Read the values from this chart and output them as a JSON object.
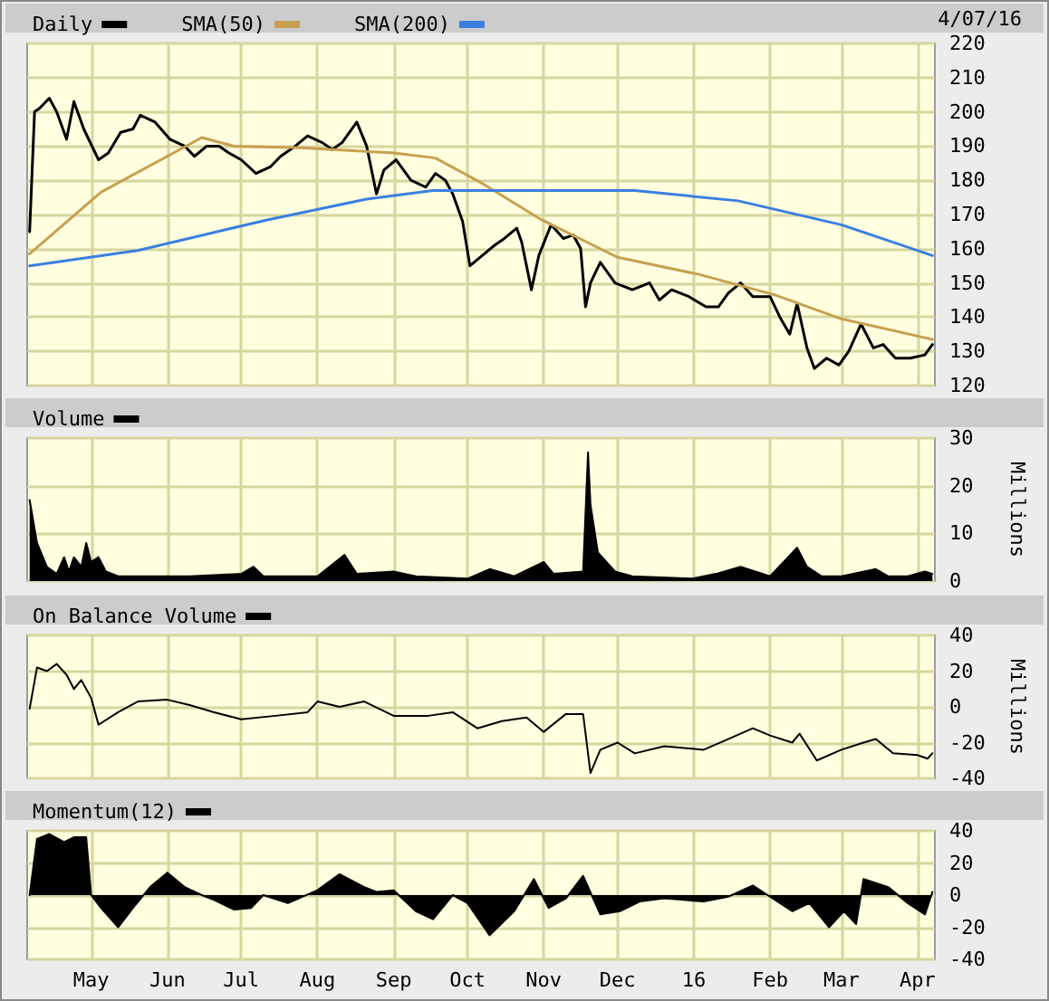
{
  "chart_data": [
    {
      "type": "line",
      "annotations": [
        "4/07/16"
      ],
      "legend": "top left",
      "grid": true,
      "tick_labels": "y",
      "xlim": [
        "2015-04-05",
        "2016-04-08"
      ],
      "xticks": [
        {
          "value": "2015-05-01",
          "label": null
        },
        {
          "value": "2015-06-01",
          "label": null
        },
        {
          "value": "2015-07-01",
          "label": null
        },
        {
          "value": "2015-08-01",
          "label": null
        },
        {
          "value": "2015-09-01",
          "label": null
        },
        {
          "value": "2015-10-01",
          "label": null
        },
        {
          "value": "2015-11-01",
          "label": null
        },
        {
          "value": "2015-12-01",
          "label": null
        },
        {
          "value": "2016-01-01",
          "label": null
        },
        {
          "value": "2016-02-01",
          "label": null
        },
        {
          "value": "2016-03-01",
          "label": null
        },
        {
          "value": "2016-04-01",
          "label": null
        }
      ],
      "ylim": [
        120,
        220
      ],
      "yticks": [
        120,
        130,
        140,
        150,
        160,
        170,
        180,
        190,
        200,
        210,
        220
      ],
      "series": [
        {
          "name": "Daily",
          "color": "#000000",
          "x": [
            "2015-04-06",
            "2015-04-08",
            "2015-04-10",
            "2015-04-14",
            "2015-04-17",
            "2015-04-21",
            "2015-04-24",
            "2015-04-28",
            "2015-05-04",
            "2015-05-08",
            "2015-05-13",
            "2015-05-18",
            "2015-05-21",
            "2015-05-27",
            "2015-06-02",
            "2015-06-08",
            "2015-06-12",
            "2015-06-17",
            "2015-06-22",
            "2015-06-26",
            "2015-07-01",
            "2015-07-07",
            "2015-07-13",
            "2015-07-17",
            "2015-07-23",
            "2015-07-28",
            "2015-08-03",
            "2015-08-07",
            "2015-08-11",
            "2015-08-17",
            "2015-08-21",
            "2015-08-25",
            "2015-08-28",
            "2015-09-02",
            "2015-09-08",
            "2015-09-14",
            "2015-09-18",
            "2015-09-22",
            "2015-09-25",
            "2015-09-29",
            "2015-10-02",
            "2015-10-07",
            "2015-10-12",
            "2015-10-16",
            "2015-10-21",
            "2015-10-23",
            "2015-10-27",
            "2015-10-30",
            "2015-11-04",
            "2015-11-09",
            "2015-11-13",
            "2015-11-16",
            "2015-11-18",
            "2015-11-20",
            "2015-11-24",
            "2015-11-30",
            "2015-12-07",
            "2015-12-14",
            "2015-12-18",
            "2015-12-23",
            "2015-12-30",
            "2016-01-06",
            "2016-01-11",
            "2016-01-15",
            "2016-01-20",
            "2016-01-25",
            "2016-02-01",
            "2016-02-05",
            "2016-02-09",
            "2016-02-12",
            "2016-02-16",
            "2016-02-19",
            "2016-02-24",
            "2016-02-29",
            "2016-03-04",
            "2016-03-09",
            "2016-03-14",
            "2016-03-18",
            "2016-03-23",
            "2016-03-29",
            "2016-04-04",
            "2016-04-07"
          ],
          "values": [
            165,
            200,
            201,
            204,
            200,
            192,
            203,
            195,
            186,
            188,
            194,
            195,
            199,
            197,
            192,
            190,
            187,
            190,
            190,
            188,
            186,
            182,
            184,
            187,
            190,
            193,
            191,
            189,
            191,
            197,
            190,
            176,
            183,
            186,
            180,
            178,
            182,
            180,
            176,
            168,
            155,
            158,
            161,
            163,
            166,
            162,
            148,
            158,
            167,
            163,
            164,
            160,
            143,
            150,
            156,
            150,
            148,
            150,
            145,
            148,
            146,
            143,
            143,
            147,
            150,
            146,
            146,
            140,
            135,
            144,
            131,
            125,
            128,
            126,
            130,
            138,
            131,
            132,
            128,
            128,
            129,
            132
          ]
        },
        {
          "name": "SMA(50)",
          "color": "#c8a050",
          "x": [
            "2015-04-06",
            "2015-05-05",
            "2015-06-15",
            "2015-06-28",
            "2015-07-25",
            "2015-09-01",
            "2015-09-18",
            "2015-10-06",
            "2015-10-31",
            "2015-12-01",
            "2016-01-03",
            "2016-02-03",
            "2016-03-01",
            "2016-04-07"
          ],
          "values": [
            158.5,
            176.5,
            192.5,
            190,
            189.5,
            188,
            186.5,
            179.5,
            168.5,
            157.5,
            152.5,
            146.5,
            139.5,
            133.5
          ]
        },
        {
          "name": "SMA(200)",
          "color": "#3a7fe0",
          "x": [
            "2015-04-06",
            "2015-05-20",
            "2015-07-12",
            "2015-08-21",
            "2015-09-17",
            "2015-12-08",
            "2016-01-19",
            "2016-03-01",
            "2016-04-07"
          ],
          "values": [
            155,
            159.5,
            168.5,
            174.5,
            177,
            177,
            174,
            167,
            158
          ]
        }
      ]
    },
    {
      "type": "area",
      "legend": "top left",
      "grid": true,
      "tick_labels": "y",
      "ylabel": "Millions",
      "xlim": [
        "2015-04-05",
        "2016-04-08"
      ],
      "xticks": [
        {
          "value": "2015-05-01",
          "label": null
        },
        {
          "value": "2015-06-01",
          "label": null
        },
        {
          "value": "2015-07-01",
          "label": null
        },
        {
          "value": "2015-08-01",
          "label": null
        },
        {
          "value": "2015-09-01",
          "label": null
        },
        {
          "value": "2015-10-01",
          "label": null
        },
        {
          "value": "2015-11-01",
          "label": null
        },
        {
          "value": "2015-12-01",
          "label": null
        },
        {
          "value": "2016-01-01",
          "label": null
        },
        {
          "value": "2016-02-01",
          "label": null
        },
        {
          "value": "2016-03-01",
          "label": null
        },
        {
          "value": "2016-04-01",
          "label": null
        }
      ],
      "ylim": [
        0,
        30
      ],
      "yticks": [
        0,
        10,
        20,
        30
      ],
      "series": [
        {
          "name": "Volume",
          "color": "#000000",
          "x": [
            "2015-04-06",
            "2015-04-09",
            "2015-04-13",
            "2015-04-17",
            "2015-04-20",
            "2015-04-22",
            "2015-04-24",
            "2015-04-27",
            "2015-04-29",
            "2015-05-01",
            "2015-05-04",
            "2015-05-07",
            "2015-05-12",
            "2015-06-01",
            "2015-06-10",
            "2015-07-01",
            "2015-07-06",
            "2015-07-10",
            "2015-08-01",
            "2015-08-12",
            "2015-08-17",
            "2015-09-01",
            "2015-09-10",
            "2015-10-01",
            "2015-10-10",
            "2015-10-20",
            "2015-11-01",
            "2015-11-05",
            "2015-11-17",
            "2015-11-19",
            "2015-11-20",
            "2015-11-23",
            "2015-11-30",
            "2015-12-07",
            "2015-12-31",
            "2016-01-10",
            "2016-01-20",
            "2016-02-01",
            "2016-02-12",
            "2016-02-16",
            "2016-02-22",
            "2016-03-01",
            "2016-03-15",
            "2016-03-20",
            "2016-03-28",
            "2016-04-04",
            "2016-04-07"
          ],
          "values": [
            17,
            8,
            3,
            1.5,
            5,
            2,
            5,
            3,
            8,
            4,
            5,
            2,
            1,
            1,
            1,
            1.5,
            3,
            1,
            1,
            5.5,
            1.5,
            2,
            1,
            0.5,
            2.5,
            1,
            4,
            1.5,
            2,
            27,
            16,
            6,
            2,
            1,
            0.5,
            1.5,
            3,
            1,
            7,
            3,
            1,
            1,
            2.5,
            1,
            1,
            2,
            1.5
          ]
        }
      ]
    },
    {
      "type": "line",
      "legend": "top left",
      "grid": true,
      "tick_labels": "y",
      "ylabel": "Millions",
      "xlim": [
        "2015-04-05",
        "2016-04-08"
      ],
      "xticks": [
        {
          "value": "2015-05-01",
          "label": null
        },
        {
          "value": "2015-06-01",
          "label": null
        },
        {
          "value": "2015-07-01",
          "label": null
        },
        {
          "value": "2015-08-01",
          "label": null
        },
        {
          "value": "2015-09-01",
          "label": null
        },
        {
          "value": "2015-10-01",
          "label": null
        },
        {
          "value": "2015-11-01",
          "label": null
        },
        {
          "value": "2015-12-01",
          "label": null
        },
        {
          "value": "2016-01-01",
          "label": null
        },
        {
          "value": "2016-02-01",
          "label": null
        },
        {
          "value": "2016-03-01",
          "label": null
        },
        {
          "value": "2016-04-01",
          "label": null
        }
      ],
      "ylim": [
        -40,
        40
      ],
      "yticks": [
        -40,
        -20,
        0,
        20,
        40
      ],
      "series": [
        {
          "name": "On Balance Volume",
          "color": "#000000",
          "x": [
            "2015-04-06",
            "2015-04-09",
            "2015-04-13",
            "2015-04-17",
            "2015-04-21",
            "2015-04-24",
            "2015-04-27",
            "2015-05-01",
            "2015-05-04",
            "2015-05-12",
            "2015-05-20",
            "2015-06-01",
            "2015-06-10",
            "2015-06-20",
            "2015-07-01",
            "2015-07-15",
            "2015-07-28",
            "2015-08-01",
            "2015-08-10",
            "2015-08-20",
            "2015-09-01",
            "2015-09-15",
            "2015-09-25",
            "2015-10-05",
            "2015-10-15",
            "2015-10-25",
            "2015-11-01",
            "2015-11-10",
            "2015-11-17",
            "2015-11-20",
            "2015-11-24",
            "2015-12-01",
            "2015-12-08",
            "2015-12-20",
            "2016-01-05",
            "2016-01-15",
            "2016-01-25",
            "2016-02-01",
            "2016-02-10",
            "2016-02-13",
            "2016-02-20",
            "2016-03-01",
            "2016-03-10",
            "2016-03-15",
            "2016-03-22",
            "2016-04-01",
            "2016-04-05",
            "2016-04-07"
          ],
          "values": [
            -1,
            22,
            20,
            24,
            18,
            10,
            15,
            5,
            -10,
            -3,
            3,
            4,
            1,
            -3,
            -7,
            -5,
            -3,
            3,
            0,
            3,
            -5,
            -5,
            -3,
            -12,
            -8,
            -6,
            -14,
            -4,
            -4,
            -37,
            -24,
            -20,
            -26,
            -22,
            -24,
            -18,
            -12,
            -16,
            -20,
            -15,
            -30,
            -24,
            -20,
            -18,
            -26,
            -27,
            -29,
            -26
          ]
        }
      ]
    },
    {
      "type": "area",
      "legend": "top left",
      "grid": true,
      "xlim": [
        "2015-04-05",
        "2016-04-08"
      ],
      "xticks": [
        {
          "value": "2015-05-01",
          "label": "May"
        },
        {
          "value": "2015-06-01",
          "label": "Jun"
        },
        {
          "value": "2015-07-01",
          "label": "Jul"
        },
        {
          "value": "2015-08-01",
          "label": "Aug"
        },
        {
          "value": "2015-09-01",
          "label": "Sep"
        },
        {
          "value": "2015-10-01",
          "label": "Oct"
        },
        {
          "value": "2015-11-01",
          "label": "Nov"
        },
        {
          "value": "2015-12-01",
          "label": "Dec"
        },
        {
          "value": "2016-01-01",
          "label": "16"
        },
        {
          "value": "2016-02-01",
          "label": "Feb"
        },
        {
          "value": "2016-03-01",
          "label": "Mar"
        },
        {
          "value": "2016-04-01",
          "label": "Apr"
        }
      ],
      "ylim": [
        -40,
        40
      ],
      "yticks": [
        -40,
        -20,
        0,
        20,
        40
      ],
      "series": [
        {
          "name": "Momentum(12)",
          "color": "#000000",
          "x": [
            "2015-04-06",
            "2015-04-09",
            "2015-04-14",
            "2015-04-20",
            "2015-04-24",
            "2015-04-29",
            "2015-05-01",
            "2015-05-05",
            "2015-05-12",
            "2015-05-18",
            "2015-05-25",
            "2015-06-01",
            "2015-06-08",
            "2015-06-15",
            "2015-06-20",
            "2015-06-28",
            "2015-07-05",
            "2015-07-10",
            "2015-07-20",
            "2015-08-01",
            "2015-08-10",
            "2015-08-20",
            "2015-08-25",
            "2015-09-01",
            "2015-09-10",
            "2015-09-17",
            "2015-09-25",
            "2015-10-01",
            "2015-10-10",
            "2015-10-20",
            "2015-10-28",
            "2015-11-03",
            "2015-11-10",
            "2015-11-17",
            "2015-11-24",
            "2015-12-02",
            "2015-12-10",
            "2015-12-20",
            "2016-01-05",
            "2016-01-15",
            "2016-01-25",
            "2016-02-01",
            "2016-02-10",
            "2016-02-17",
            "2016-02-25",
            "2016-03-02",
            "2016-03-07",
            "2016-03-10",
            "2016-03-20",
            "2016-03-28",
            "2016-04-04",
            "2016-04-07"
          ],
          "values": [
            0,
            35,
            38,
            33,
            36,
            36,
            0,
            -8,
            -20,
            -8,
            5,
            14,
            5,
            0,
            -3,
            -9,
            -8,
            0,
            -5,
            3,
            13,
            5,
            2,
            3,
            -10,
            -15,
            0,
            -5,
            -25,
            -10,
            10,
            -8,
            -2,
            12,
            -12,
            -10,
            -4,
            -2,
            -4,
            -1,
            6,
            -1,
            -10,
            -5,
            -20,
            -10,
            -18,
            10,
            5,
            -5,
            -12,
            2
          ]
        }
      ]
    }
  ]
}
